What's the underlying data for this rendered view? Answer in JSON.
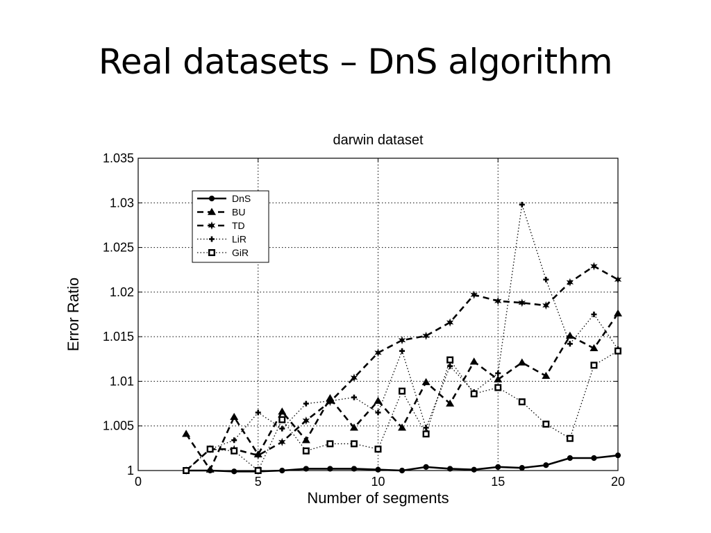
{
  "slide": {
    "title": "Real datasets – DnS algorithm"
  },
  "chart_data": {
    "type": "line",
    "title": "darwin dataset",
    "xlabel": "Number of segments",
    "ylabel": "Error Ratio",
    "xlim": [
      0,
      20
    ],
    "ylim": [
      1,
      1.035
    ],
    "xticks": [
      0,
      5,
      10,
      15,
      20
    ],
    "xtick_labels": [
      "0",
      "5",
      "10",
      "15",
      "20"
    ],
    "yticks": [
      1,
      1.005,
      1.01,
      1.015,
      1.02,
      1.025,
      1.03,
      1.035
    ],
    "ytick_labels": [
      "1",
      "1.005",
      "1.01",
      "1.015",
      "1.02",
      "1.025",
      "1.03",
      "1.035"
    ],
    "grid": true,
    "legend_position": "top-left",
    "x": [
      2,
      3,
      4,
      5,
      6,
      7,
      8,
      9,
      10,
      11,
      12,
      13,
      14,
      15,
      16,
      17,
      18,
      19,
      20
    ],
    "series": [
      {
        "name": "DnS",
        "line": "solid",
        "marker": "circle",
        "values": [
          1.0,
          1.0,
          0.9999,
          0.9999,
          1.0,
          1.0002,
          1.0002,
          1.0002,
          1.0001,
          1.0,
          1.0004,
          1.0002,
          1.0001,
          1.0004,
          1.0003,
          1.0006,
          1.0014,
          1.0014,
          1.0017
        ]
      },
      {
        "name": "BU",
        "line": "dashed",
        "marker": "triangle",
        "values": [
          1.0041,
          1.0001,
          1.006,
          1.0018,
          1.0066,
          1.0034,
          1.0081,
          1.0048,
          1.0078,
          1.0048,
          1.0099,
          1.0075,
          1.0122,
          1.0102,
          1.0121,
          1.0106,
          1.0151,
          1.0137,
          1.0176
        ]
      },
      {
        "name": "TD",
        "line": "dashed",
        "marker": "star",
        "values": [
          1.0,
          1.0024,
          1.0024,
          1.0017,
          1.0032,
          1.0056,
          1.0077,
          1.0104,
          1.0132,
          1.0146,
          1.0151,
          1.0166,
          1.0197,
          1.019,
          1.0188,
          1.0185,
          1.0211,
          1.0229,
          1.0214
        ]
      },
      {
        "name": "LiR",
        "line": "dotted",
        "marker": "plus",
        "values": [
          1.0,
          1.0024,
          1.0034,
          1.0065,
          1.0047,
          1.0075,
          1.0078,
          1.0082,
          1.0065,
          1.0134,
          1.0048,
          1.0117,
          1.0088,
          1.0109,
          1.0298,
          1.0214,
          1.0142,
          1.0175,
          1.0136
        ]
      },
      {
        "name": "GiR",
        "line": "dotted",
        "marker": "square",
        "values": [
          1.0,
          1.0024,
          1.0022,
          1.0,
          1.0057,
          1.0022,
          1.003,
          1.003,
          1.0024,
          1.0089,
          1.0041,
          1.0124,
          1.0086,
          1.0093,
          1.0077,
          1.0052,
          1.0036,
          1.0118,
          1.0134
        ]
      }
    ]
  }
}
